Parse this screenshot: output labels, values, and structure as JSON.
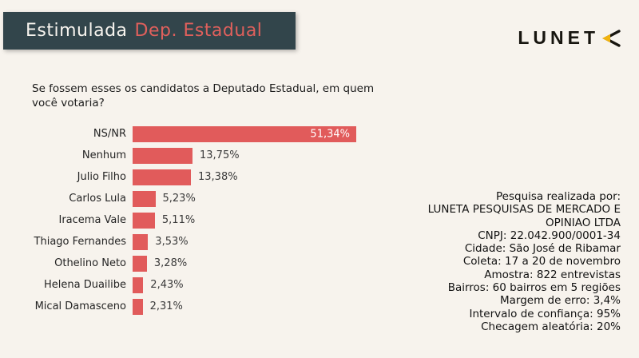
{
  "colors": {
    "background": "#F7F3ED",
    "banner_bg": "#32454B",
    "banner_accent_text": "#E0605C",
    "bar": "#E15B5B",
    "bar_label_inside": "#FFFFFF",
    "logo_black": "#17150F",
    "logo_yellow": "#F1B30E",
    "text_dark": "#1B1B1B"
  },
  "banner": {
    "title_plain": "Estimulada",
    "title_accent": "Dep. Estadual"
  },
  "logo": {
    "text": "LUNET",
    "mark": "left-arrow-chevron"
  },
  "question": "Se fossem esses os candidatos a Deputado Estadual, em quem você votaria?",
  "chart_data": {
    "type": "bar",
    "orientation": "horizontal",
    "title": "",
    "xlabel": "",
    "ylabel": "",
    "xlim": [
      0,
      51.34
    ],
    "grid": false,
    "legend": false,
    "bar_color": "#E15B5B",
    "categories": [
      "NS/NR",
      "Nenhum",
      "Julio Filho",
      "Carlos Lula",
      "Iracema Vale",
      "Thiago Fernandes",
      "Othelino Neto",
      "Helena Duailibe",
      "Mical Damasceno"
    ],
    "values": [
      51.34,
      13.75,
      13.38,
      5.23,
      5.11,
      3.53,
      3.28,
      2.43,
      2.31
    ],
    "value_labels": [
      "51,34%",
      "13,75%",
      "13,38%",
      "5,23%",
      "5,11%",
      "3,53%",
      "3,28%",
      "2,43%",
      "2,31%"
    ]
  },
  "info_panel": {
    "lines": [
      "Pesquisa realizada por:",
      "LUNETA PESQUISAS DE MERCADO E",
      "OPINIAO LTDA",
      "CNPJ: 22.042.900/0001-34",
      "Cidade: São José de Ribamar",
      "Coleta: 17 a 20 de novembro",
      "Amostra: 822 entrevistas",
      "Bairros: 60 bairros em 5 regiões",
      "Margem de erro: 3,4%",
      "Intervalo de confiança: 95%",
      "Checagem aleatória: 20%"
    ]
  }
}
